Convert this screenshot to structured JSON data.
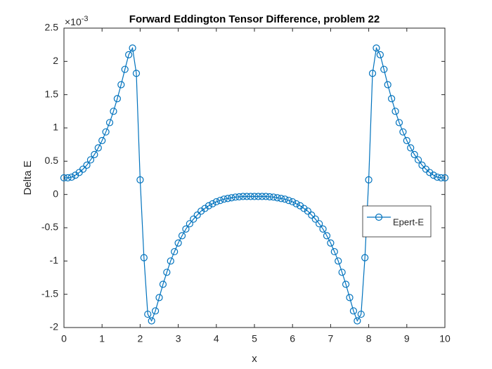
{
  "chart_data": {
    "type": "line",
    "title": "Forward Eddington Tensor Difference, problem 22",
    "x_label": "x",
    "y_label": "Delta E",
    "y_multiplier_base": "×10",
    "y_multiplier_exponent": "-3",
    "xlim": [
      0,
      10
    ],
    "xticks": [
      0,
      1,
      2,
      3,
      4,
      5,
      6,
      7,
      8,
      9,
      10
    ],
    "ylim": [
      -2,
      2.5
    ],
    "yticks": [
      -2,
      -1.5,
      -1,
      -0.5,
      0,
      0.5,
      1,
      1.5,
      2,
      2.5
    ],
    "legend_position": "east",
    "box": true,
    "series": [
      {
        "name": "Epert-E",
        "color": "#0072bd",
        "marker": "circle",
        "x": [
          0,
          0.1,
          0.2,
          0.3,
          0.4,
          0.5,
          0.6,
          0.7,
          0.8,
          0.9,
          1,
          1.1,
          1.2,
          1.3,
          1.4,
          1.5,
          1.6,
          1.7,
          1.8,
          1.9,
          2,
          2.1,
          2.2,
          2.3,
          2.4,
          2.5,
          2.6,
          2.7,
          2.8,
          2.9,
          3,
          3.1,
          3.2,
          3.3,
          3.4,
          3.5,
          3.6,
          3.7,
          3.8,
          3.9,
          4,
          4.1,
          4.2,
          4.3,
          4.4,
          4.5,
          4.6,
          4.7,
          4.8,
          4.9,
          5,
          5.1,
          5.2,
          5.3,
          5.4,
          5.5,
          5.6,
          5.7,
          5.8,
          5.9,
          6,
          6.1,
          6.2,
          6.3,
          6.4,
          6.5,
          6.6,
          6.7,
          6.8,
          6.9,
          7,
          7.1,
          7.2,
          7.3,
          7.4,
          7.5,
          7.6,
          7.7,
          7.8,
          7.9,
          8,
          8.1,
          8.2,
          8.3,
          8.4,
          8.5,
          8.6,
          8.7,
          8.8,
          8.9,
          9,
          9.1,
          9.2,
          9.3,
          9.4,
          9.5,
          9.6,
          9.7,
          9.8,
          9.9,
          10
        ],
        "values": [
          0.25,
          0.25,
          0.26,
          0.29,
          0.33,
          0.38,
          0.44,
          0.52,
          0.6,
          0.7,
          0.81,
          0.94,
          1.08,
          1.25,
          1.44,
          1.65,
          1.88,
          2.1,
          2.2,
          1.82,
          0.22,
          -0.95,
          -1.8,
          -1.9,
          -1.75,
          -1.55,
          -1.35,
          -1.17,
          -1.0,
          -0.86,
          -0.73,
          -0.62,
          -0.52,
          -0.44,
          -0.37,
          -0.31,
          -0.25,
          -0.21,
          -0.17,
          -0.14,
          -0.11,
          -0.09,
          -0.07,
          -0.06,
          -0.05,
          -0.04,
          -0.035,
          -0.03,
          -0.03,
          -0.03,
          -0.03,
          -0.03,
          -0.03,
          -0.03,
          -0.035,
          -0.04,
          -0.05,
          -0.06,
          -0.07,
          -0.09,
          -0.11,
          -0.14,
          -0.17,
          -0.21,
          -0.25,
          -0.31,
          -0.37,
          -0.44,
          -0.52,
          -0.62,
          -0.73,
          -0.86,
          -1.0,
          -1.17,
          -1.35,
          -1.55,
          -1.75,
          -1.9,
          -1.8,
          -0.95,
          0.22,
          1.82,
          2.2,
          2.1,
          1.88,
          1.65,
          1.44,
          1.25,
          1.08,
          0.94,
          0.81,
          0.7,
          0.6,
          0.52,
          0.44,
          0.38,
          0.33,
          0.29,
          0.26,
          0.25,
          0.25
        ]
      }
    ]
  }
}
